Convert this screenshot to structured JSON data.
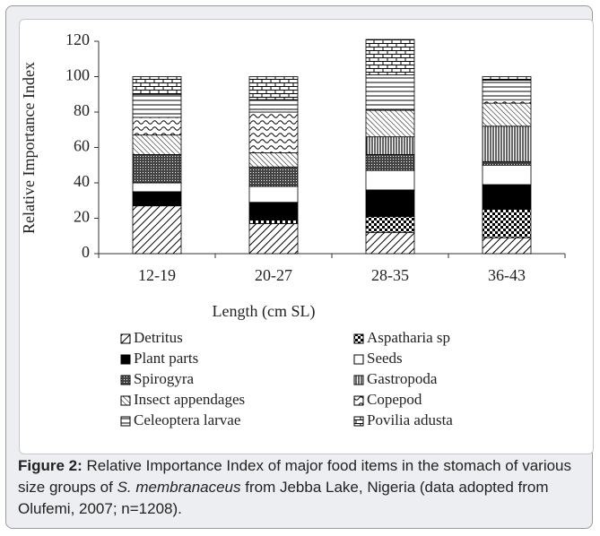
{
  "chart_data": {
    "type": "stacked_bar",
    "ylabel": "Relative Importance Index",
    "xlabel": "Length (cm SL)",
    "categories": [
      "12-19",
      "20-27",
      "28-35",
      "36-43"
    ],
    "ylim": [
      0,
      120
    ],
    "yticks": [
      0,
      20,
      40,
      60,
      80,
      100,
      120
    ],
    "series": [
      {
        "name": "Detritus",
        "color": "#000000",
        "pattern": "diagonal",
        "values": [
          27,
          17,
          12,
          9
        ]
      },
      {
        "name": "Aspatharia sp",
        "color": "#000000",
        "pattern": "checker",
        "values": [
          0,
          2,
          9,
          16
        ]
      },
      {
        "name": "Plant parts",
        "color": "#000000",
        "pattern": "solid",
        "values": [
          8,
          10,
          15,
          14
        ]
      },
      {
        "name": "Seeds",
        "color": "#000000",
        "pattern": "empty",
        "values": [
          5,
          9,
          11,
          11
        ]
      },
      {
        "name": "Spirogyra",
        "color": "#000000",
        "pattern": "dots",
        "values": [
          16,
          11,
          9,
          2
        ]
      },
      {
        "name": "Gastropoda",
        "color": "#000000",
        "pattern": "vertical",
        "values": [
          0,
          0,
          10,
          20
        ]
      },
      {
        "name": "Insect appendages",
        "color": "#000000",
        "pattern": "backdiagonal",
        "values": [
          11,
          8,
          15,
          13
        ]
      },
      {
        "name": "Copepod",
        "color": "#000000",
        "pattern": "wavy",
        "values": [
          10,
          23,
          0,
          2
        ]
      },
      {
        "name": "Celeoptera larvae",
        "color": "#000000",
        "pattern": "horizontal",
        "values": [
          13,
          7,
          20,
          11
        ]
      },
      {
        "name": "Povilia adusta",
        "color": "#000000",
        "pattern": "brick",
        "values": [
          10,
          13,
          20,
          2
        ]
      }
    ]
  },
  "figure_caption": {
    "label": "Figure 2:",
    "text_before": " Relative Importance Index of major food items in the stomach of various size groups of ",
    "italic": "S. membranaceus",
    "text_after": " from Jebba Lake, Nigeria (data adopted from Olufemi, 2007; n=1208)."
  }
}
